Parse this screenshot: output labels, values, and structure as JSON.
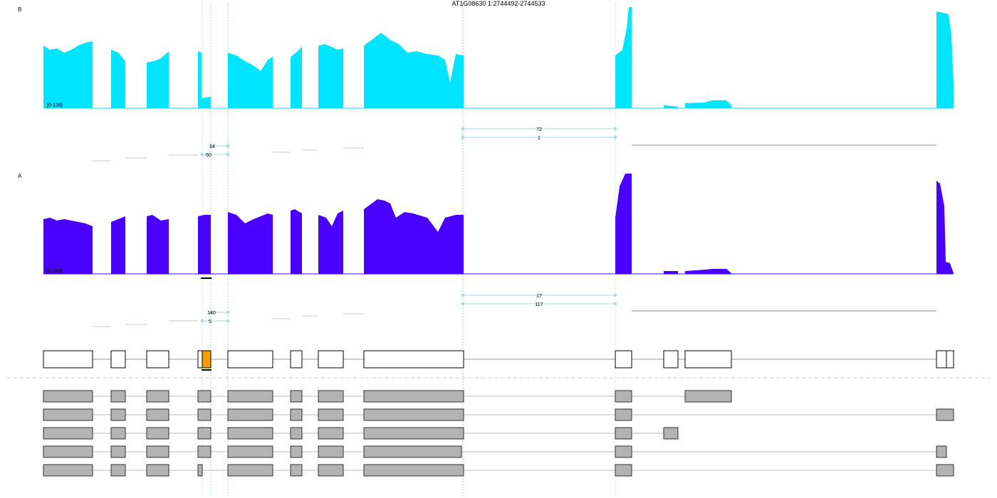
{
  "title": "AT1G08630 1:2744492-2744533",
  "tracks": [
    {
      "label": "B",
      "range_label": "[0-138]",
      "color": "#00e5ff",
      "junctions": [
        {
          "count": "72"
        },
        {
          "count": "1"
        },
        {
          "count": "14"
        },
        {
          "count": "60"
        }
      ]
    },
    {
      "label": "A",
      "range_label": "[0-249]",
      "color": "#4a00ff",
      "junctions": [
        {
          "count": "17"
        },
        {
          "count": "117"
        },
        {
          "count": "140"
        },
        {
          "count": "5"
        }
      ]
    }
  ],
  "colors": {
    "highlight_exon": "#f5a000",
    "transcript_exon": "#b3b3b3",
    "guide_line": "#9be39b",
    "junction_arc": "#add8e6"
  },
  "transcripts_count": 5
}
